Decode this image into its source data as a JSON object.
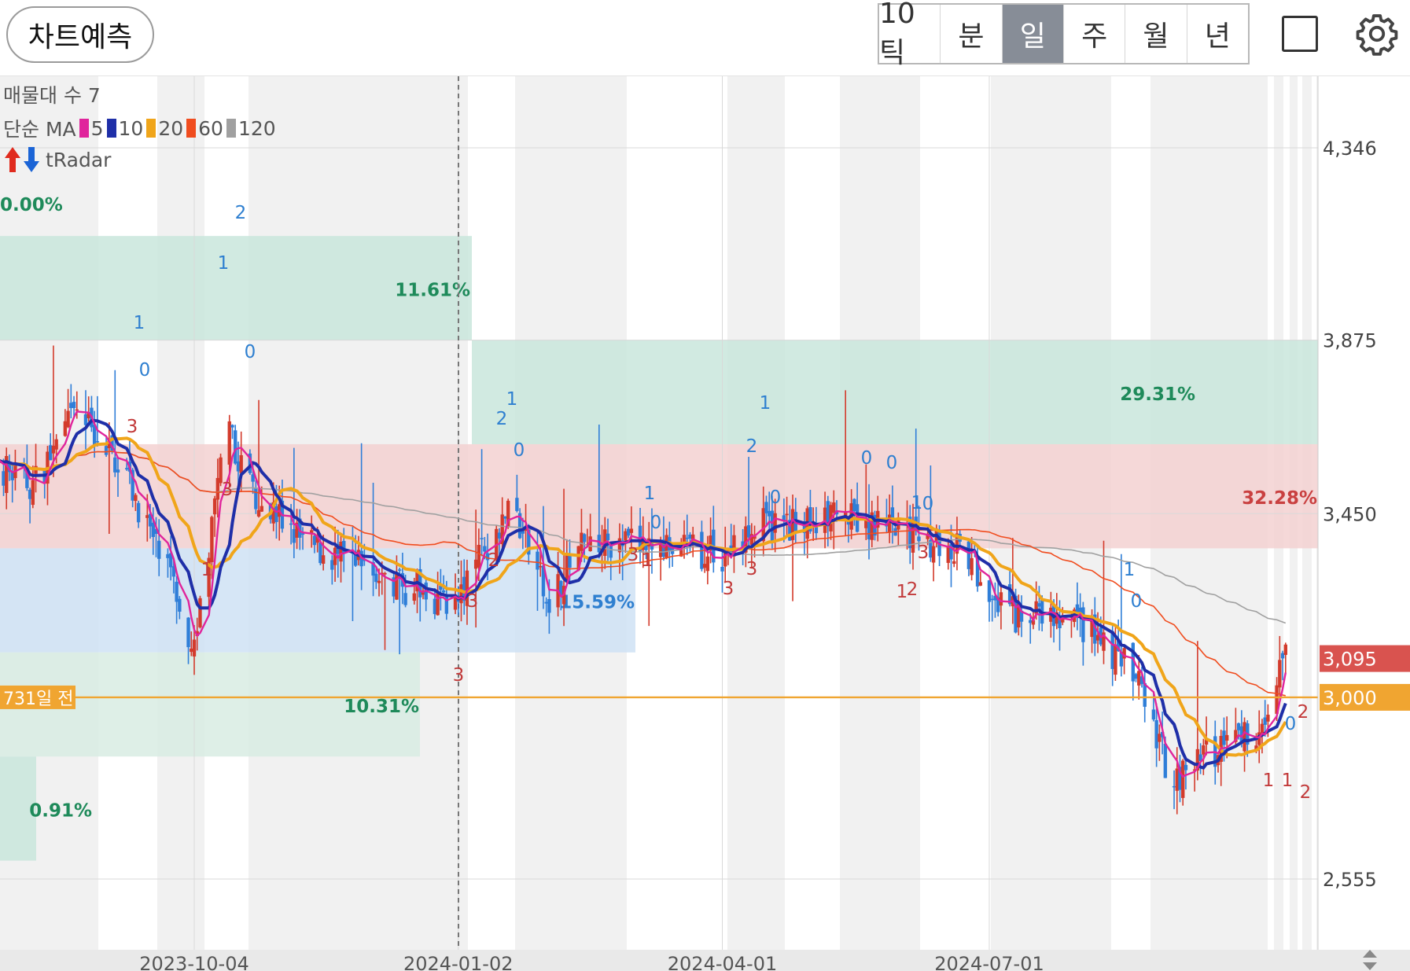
{
  "toolbar": {
    "predict_label": "차트예측",
    "periods": [
      "10틱",
      "분",
      "일",
      "주",
      "월",
      "년"
    ],
    "active_period": "일",
    "square_icon": "square-outline-icon",
    "settings_icon": "gear-icon"
  },
  "legend": {
    "volume_profile": "매물대 수 7",
    "ma_title": "단순 MA",
    "ma_items": [
      {
        "period": "5",
        "color": "#e0249c"
      },
      {
        "period": "10",
        "color": "#1f2fa8"
      },
      {
        "period": "20",
        "color": "#f0a51a"
      },
      {
        "period": "60",
        "color": "#f04c1e"
      },
      {
        "period": "120",
        "color": "#a0a0a0"
      }
    ],
    "radar_label": "tRadar",
    "radar_up_icon": "red-up-arrow-icon",
    "radar_down_icon": "blue-down-arrow-icon"
  },
  "chart_data": {
    "type": "candlestick",
    "y_axis_ticks": [
      "4,346",
      "3,875",
      "3,450",
      "2,555"
    ],
    "y_axis_tick_values": [
      4346,
      3875,
      3450,
      2555
    ],
    "x_axis_ticks": [
      "2023-10-04",
      "2024-01-02",
      "2024-04-01",
      "2024-07-01"
    ],
    "price_badges": [
      {
        "label": "3,095",
        "value": 3095,
        "color": "#d9534f"
      },
      {
        "label": "3,000",
        "value": 3000,
        "color": "#f0a531"
      }
    ],
    "reference_line": {
      "label": "731일 전",
      "value": 3000,
      "color": "#f0a531"
    },
    "volume_profile_bands": [
      {
        "pct_label": "0.00%",
        "color": "#1e8a5a",
        "low": 4300,
        "high": 4346
      },
      {
        "pct_label": "11.61%",
        "color": "#1e8a5a",
        "low": 3875,
        "high": 4130
      },
      {
        "pct_label": "29.31%",
        "color": "#1e8a5a",
        "low": 3620,
        "high": 3875
      },
      {
        "pct_label": "32.28%",
        "color": "#c94040",
        "low": 3365,
        "high": 3620
      },
      {
        "pct_label": "15.59%",
        "color": "#2e7fd0",
        "low": 3110,
        "high": 3365
      },
      {
        "pct_label": "10.31%",
        "color": "#1e8a5a",
        "low": 2855,
        "high": 3110
      },
      {
        "pct_label": "0.91%",
        "color": "#1e8a5a",
        "low": 2600,
        "high": 2855
      }
    ],
    "ma_series": [
      {
        "name": "5",
        "color": "#e0249c"
      },
      {
        "name": "10",
        "color": "#1f2fa8"
      },
      {
        "name": "20",
        "color": "#f0a51a"
      },
      {
        "name": "60",
        "color": "#f04c1e"
      },
      {
        "name": "120",
        "color": "#a0a0a0"
      }
    ],
    "approx_close_path": [
      [
        "2023-07-20",
        3600
      ],
      [
        "2023-08-10",
        3520
      ],
      [
        "2023-08-25",
        3700
      ],
      [
        "2023-09-10",
        3560
      ],
      [
        "2023-09-25",
        3300
      ],
      [
        "2023-10-04",
        3130
      ],
      [
        "2023-10-15",
        3650
      ],
      [
        "2023-10-25",
        3500
      ],
      [
        "2023-11-10",
        3380
      ],
      [
        "2023-11-25",
        3330
      ],
      [
        "2023-12-15",
        3270
      ],
      [
        "2024-01-02",
        3230
      ],
      [
        "2024-01-12",
        3380
      ],
      [
        "2024-01-20",
        3480
      ],
      [
        "2024-02-01",
        3240
      ],
      [
        "2024-02-15",
        3380
      ],
      [
        "2024-03-10",
        3370
      ],
      [
        "2024-04-01",
        3350
      ],
      [
        "2024-04-15",
        3420
      ],
      [
        "2024-05-10",
        3440
      ],
      [
        "2024-06-01",
        3400
      ],
      [
        "2024-06-20",
        3360
      ],
      [
        "2024-07-10",
        3200
      ],
      [
        "2024-08-01",
        3180
      ],
      [
        "2024-08-20",
        3050
      ],
      [
        "2024-09-01",
        2800
      ],
      [
        "2024-09-15",
        2870
      ],
      [
        "2024-10-01",
        2930
      ],
      [
        "2024-10-10",
        3095
      ]
    ],
    "signal_marks": [
      {
        "text": "1",
        "color": "#2e7fd0"
      },
      {
        "text": "0",
        "color": "#2e7fd0"
      },
      {
        "text": "2",
        "color": "#2e7fd0"
      },
      {
        "text": "1",
        "color": "#2e7fd0"
      },
      {
        "text": "0",
        "color": "#2e7fd0"
      },
      {
        "text": "2",
        "color": "#2e7fd0"
      },
      {
        "text": "1",
        "color": "#2e7fd0"
      },
      {
        "text": "0",
        "color": "#2e7fd0"
      },
      {
        "text": "1",
        "color": "#2e7fd0"
      },
      {
        "text": "0",
        "color": "#2e7fd0"
      },
      {
        "text": "2",
        "color": "#2e7fd0"
      },
      {
        "text": "1",
        "color": "#2e7fd0"
      },
      {
        "text": "0",
        "color": "#2e7fd0"
      },
      {
        "text": "0",
        "color": "#2e7fd0"
      },
      {
        "text": "0",
        "color": "#2e7fd0"
      },
      {
        "text": "1",
        "color": "#2e7fd0"
      },
      {
        "text": "0",
        "color": "#2e7fd0"
      },
      {
        "text": "1",
        "color": "#2e7fd0"
      },
      {
        "text": "0",
        "color": "#2e7fd0"
      },
      {
        "text": "0",
        "color": "#2e7fd0"
      },
      {
        "text": "2",
        "color": "#c23a3a"
      },
      {
        "text": "3",
        "color": "#c23a3a"
      },
      {
        "text": "3",
        "color": "#c23a3a"
      },
      {
        "text": "1",
        "color": "#c23a3a"
      },
      {
        "text": "3",
        "color": "#c23a3a"
      },
      {
        "text": "3",
        "color": "#c23a3a"
      },
      {
        "text": "2",
        "color": "#c23a3a"
      },
      {
        "text": "3",
        "color": "#c23a3a"
      },
      {
        "text": "1",
        "color": "#c23a3a"
      },
      {
        "text": "3",
        "color": "#c23a3a"
      },
      {
        "text": "3",
        "color": "#c23a3a"
      },
      {
        "text": "1",
        "color": "#c23a3a"
      },
      {
        "text": "3",
        "color": "#c23a3a"
      },
      {
        "text": "2",
        "color": "#c23a3a"
      },
      {
        "text": "1",
        "color": "#c23a3a"
      },
      {
        "text": "1",
        "color": "#c23a3a"
      },
      {
        "text": "2",
        "color": "#c23a3a"
      }
    ],
    "colors": {
      "up": "#d33b2c",
      "down": "#2f7ed8"
    }
  }
}
